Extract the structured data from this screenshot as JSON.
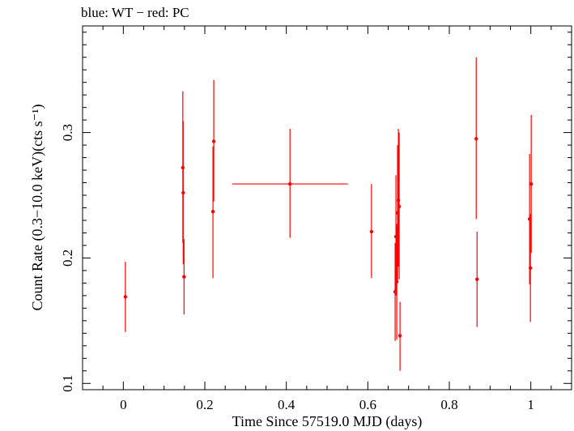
{
  "chart_data": {
    "type": "scatter",
    "title": "blue: WT − red: PC",
    "xlabel": "Time Since 57519.0 MJD (days)",
    "ylabel": "Count Rate (0.3−10.0 keV)(cts s⁻¹)",
    "xlim": [
      -0.1,
      1.1
    ],
    "ylim": [
      0.095,
      0.385
    ],
    "xticks": [
      0,
      0.2,
      0.4,
      0.6,
      0.8,
      1
    ],
    "xtick_labels": [
      "0",
      "0.2",
      "0.4",
      "0.6",
      "0.8",
      "1"
    ],
    "yticks": [
      0.1,
      0.2,
      0.3
    ],
    "ytick_labels": [
      "0.1",
      "0.2",
      "0.3"
    ],
    "legend": "title text (top-left)",
    "series": [
      {
        "name": "PC",
        "color": "#ff0000",
        "points": [
          {
            "x": 0.005,
            "xerr": 0.0,
            "y": 0.169,
            "ylo": 0.141,
            "yhi": 0.197
          },
          {
            "x": 0.146,
            "xerr": 0.0,
            "y": 0.272,
            "ylo": 0.212,
            "yhi": 0.333
          },
          {
            "x": 0.147,
            "xerr": 0.0,
            "y": 0.252,
            "ylo": 0.195,
            "yhi": 0.309
          },
          {
            "x": 0.149,
            "xerr": 0.0,
            "y": 0.185,
            "ylo": 0.155,
            "yhi": 0.215
          },
          {
            "x": 0.22,
            "xerr": 0.0,
            "y": 0.237,
            "ylo": 0.184,
            "yhi": 0.289
          },
          {
            "x": 0.222,
            "xerr": 0.0,
            "y": 0.293,
            "ylo": 0.245,
            "yhi": 0.342
          },
          {
            "x": 0.409,
            "xerr": 0.142,
            "y": 0.259,
            "ylo": 0.216,
            "yhi": 0.303
          },
          {
            "x": 0.609,
            "xerr": 0.0,
            "y": 0.221,
            "ylo": 0.184,
            "yhi": 0.259
          },
          {
            "x": 0.667,
            "xerr": 0.0,
            "y": 0.173,
            "ylo": 0.134,
            "yhi": 0.212
          },
          {
            "x": 0.669,
            "xerr": 0.0,
            "y": 0.217,
            "ylo": 0.17,
            "yhi": 0.266
          },
          {
            "x": 0.671,
            "xerr": 0.0,
            "y": 0.181,
            "ylo": 0.135,
            "yhi": 0.227
          },
          {
            "x": 0.673,
            "xerr": 0.0,
            "y": 0.236,
            "ylo": 0.182,
            "yhi": 0.29
          },
          {
            "x": 0.675,
            "xerr": 0.0,
            "y": 0.246,
            "ylo": 0.193,
            "yhi": 0.303
          },
          {
            "x": 0.677,
            "xerr": 0.0,
            "y": 0.241,
            "ylo": 0.183,
            "yhi": 0.3
          },
          {
            "x": 0.679,
            "xerr": 0.0,
            "y": 0.138,
            "ylo": 0.11,
            "yhi": 0.165
          },
          {
            "x": 0.866,
            "xerr": 0.0,
            "y": 0.295,
            "ylo": 0.231,
            "yhi": 0.36
          },
          {
            "x": 0.868,
            "xerr": 0.0,
            "y": 0.183,
            "ylo": 0.145,
            "yhi": 0.221
          },
          {
            "x": 0.997,
            "xerr": 0.0,
            "y": 0.231,
            "ylo": 0.179,
            "yhi": 0.283
          },
          {
            "x": 0.999,
            "xerr": 0.0,
            "y": 0.192,
            "ylo": 0.149,
            "yhi": 0.235
          },
          {
            "x": 1.001,
            "xerr": 0.0,
            "y": 0.259,
            "ylo": 0.204,
            "yhi": 0.314
          }
        ]
      }
    ]
  }
}
